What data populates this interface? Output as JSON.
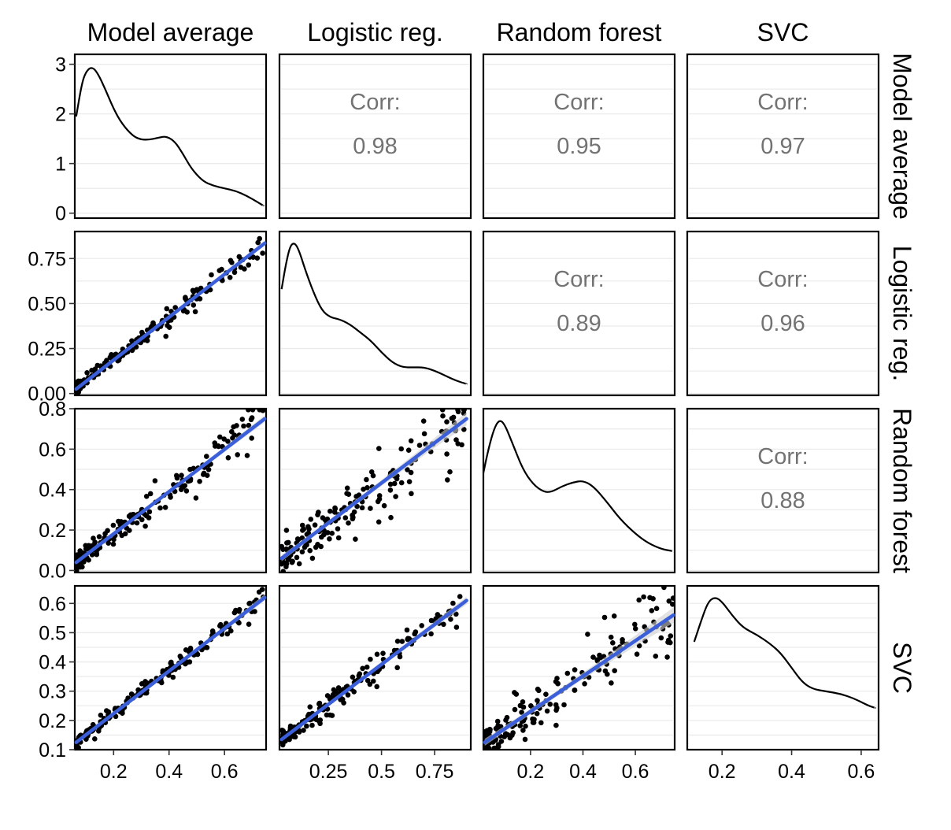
{
  "chart_data": {
    "type": "scatter-matrix",
    "variables": [
      "Model average",
      "Logistic reg.",
      "Random forest",
      "SVC"
    ],
    "x_ticks": [
      {
        "values": [
          0.2,
          0.4,
          0.6
        ],
        "labels": [
          "0.2",
          "0.4",
          "0.6"
        ]
      },
      {
        "values": [
          0.25,
          0.5,
          0.75
        ],
        "labels": [
          "0.25",
          "0.5",
          "0.75"
        ]
      },
      {
        "values": [
          0.2,
          0.4,
          0.6
        ],
        "labels": [
          "0.2",
          "0.4",
          "0.6"
        ]
      },
      {
        "values": [
          0.2,
          0.4,
          0.6
        ],
        "labels": [
          "0.2",
          "0.4",
          "0.6"
        ]
      }
    ],
    "x_ranges": [
      [
        0.06,
        0.75
      ],
      [
        0.02,
        0.92
      ],
      [
        0.02,
        0.75
      ],
      [
        0.1,
        0.65
      ]
    ],
    "y_ticks": [
      {
        "values": [
          0,
          1,
          2,
          3
        ],
        "labels": [
          "0",
          "1",
          "2",
          "3"
        ]
      },
      {
        "values": [
          0,
          0.25,
          0.5,
          0.75
        ],
        "labels": [
          "0.00",
          "0.25",
          "0.50",
          "0.75"
        ]
      },
      {
        "values": [
          0,
          0.2,
          0.4,
          0.6,
          0.8
        ],
        "labels": [
          "0.0",
          "0.2",
          "0.4",
          "0.6",
          "0.8"
        ]
      },
      {
        "values": [
          0.1,
          0.2,
          0.3,
          0.4,
          0.5,
          0.6
        ],
        "labels": [
          "0.1",
          "0.2",
          "0.3",
          "0.4",
          "0.5",
          "0.6"
        ]
      }
    ],
    "y_ranges": [
      [
        -0.1,
        3.2
      ],
      [
        -0.01,
        0.9
      ],
      [
        -0.01,
        0.8
      ],
      [
        0.1,
        0.66
      ]
    ],
    "density_y_range": [
      -0.1,
      3.2
    ],
    "correlations": [
      {
        "row": 0,
        "col": 1,
        "label": "Corr:",
        "value": "0.98"
      },
      {
        "row": 0,
        "col": 2,
        "label": "Corr:",
        "value": "0.95"
      },
      {
        "row": 0,
        "col": 3,
        "label": "Corr:",
        "value": "0.97"
      },
      {
        "row": 1,
        "col": 2,
        "label": "Corr:",
        "value": "0.89"
      },
      {
        "row": 1,
        "col": 3,
        "label": "Corr:",
        "value": "0.96"
      },
      {
        "row": 2,
        "col": 3,
        "label": "Corr:",
        "value": "0.88"
      }
    ],
    "densities": [
      {
        "var": 0,
        "points": [
          [
            0.065,
            1.95
          ],
          [
            0.085,
            2.6
          ],
          [
            0.1,
            2.85
          ],
          [
            0.12,
            2.95
          ],
          [
            0.14,
            2.85
          ],
          [
            0.17,
            2.5
          ],
          [
            0.2,
            2.1
          ],
          [
            0.23,
            1.8
          ],
          [
            0.27,
            1.55
          ],
          [
            0.3,
            1.48
          ],
          [
            0.33,
            1.48
          ],
          [
            0.36,
            1.52
          ],
          [
            0.39,
            1.55
          ],
          [
            0.42,
            1.45
          ],
          [
            0.45,
            1.2
          ],
          [
            0.48,
            0.9
          ],
          [
            0.52,
            0.65
          ],
          [
            0.56,
            0.55
          ],
          [
            0.6,
            0.5
          ],
          [
            0.64,
            0.45
          ],
          [
            0.68,
            0.35
          ],
          [
            0.72,
            0.22
          ],
          [
            0.74,
            0.15
          ]
        ]
      },
      {
        "var": 1,
        "points": [
          [
            0.03,
            0.6
          ],
          [
            0.05,
            0.75
          ],
          [
            0.07,
            0.86
          ],
          [
            0.09,
            0.88
          ],
          [
            0.11,
            0.84
          ],
          [
            0.14,
            0.72
          ],
          [
            0.18,
            0.58
          ],
          [
            0.22,
            0.47
          ],
          [
            0.26,
            0.43
          ],
          [
            0.3,
            0.42
          ],
          [
            0.35,
            0.39
          ],
          [
            0.4,
            0.34
          ],
          [
            0.45,
            0.29
          ],
          [
            0.5,
            0.22
          ],
          [
            0.55,
            0.16
          ],
          [
            0.6,
            0.13
          ],
          [
            0.65,
            0.13
          ],
          [
            0.7,
            0.13
          ],
          [
            0.75,
            0.11
          ],
          [
            0.8,
            0.08
          ],
          [
            0.85,
            0.05
          ],
          [
            0.9,
            0.03
          ]
        ]
      },
      {
        "var": 2,
        "points": [
          [
            0.02,
            0.49
          ],
          [
            0.04,
            0.62
          ],
          [
            0.06,
            0.72
          ],
          [
            0.08,
            0.77
          ],
          [
            0.1,
            0.75
          ],
          [
            0.13,
            0.65
          ],
          [
            0.17,
            0.51
          ],
          [
            0.21,
            0.43
          ],
          [
            0.25,
            0.39
          ],
          [
            0.28,
            0.39
          ],
          [
            0.32,
            0.42
          ],
          [
            0.36,
            0.44
          ],
          [
            0.4,
            0.45
          ],
          [
            0.44,
            0.42
          ],
          [
            0.49,
            0.34
          ],
          [
            0.54,
            0.25
          ],
          [
            0.6,
            0.17
          ],
          [
            0.65,
            0.12
          ],
          [
            0.7,
            0.09
          ],
          [
            0.74,
            0.08
          ]
        ]
      },
      {
        "var": 3,
        "points": [
          [
            0.12,
            0.43
          ],
          [
            0.14,
            0.52
          ],
          [
            0.16,
            0.6
          ],
          [
            0.18,
            0.62
          ],
          [
            0.2,
            0.6
          ],
          [
            0.23,
            0.54
          ],
          [
            0.26,
            0.49
          ],
          [
            0.3,
            0.46
          ],
          [
            0.34,
            0.42
          ],
          [
            0.37,
            0.38
          ],
          [
            0.4,
            0.32
          ],
          [
            0.43,
            0.26
          ],
          [
            0.46,
            0.23
          ],
          [
            0.5,
            0.22
          ],
          [
            0.54,
            0.21
          ],
          [
            0.58,
            0.19
          ],
          [
            0.62,
            0.16
          ],
          [
            0.64,
            0.15
          ]
        ]
      }
    ],
    "scatter_panels": [
      {
        "row": 1,
        "col": 0,
        "fit": [
          [
            0.065,
            0.025
          ],
          [
            0.745,
            0.835
          ]
        ],
        "band_halfwidth": 0.006,
        "n": 170,
        "slope": 1.19,
        "intercept": -0.052,
        "noise": 0.025,
        "seed": 11
      },
      {
        "row": 2,
        "col": 0,
        "fit": [
          [
            0.065,
            0.04
          ],
          [
            0.745,
            0.75
          ]
        ],
        "band_halfwidth": 0.008,
        "n": 170,
        "slope": 1.04,
        "intercept": -0.028,
        "noise": 0.04,
        "seed": 23
      },
      {
        "row": 2,
        "col": 1,
        "fit": [
          [
            0.03,
            0.06
          ],
          [
            0.9,
            0.75
          ]
        ],
        "band_halfwidth": 0.015,
        "n": 170,
        "slope": 0.79,
        "intercept": 0.035,
        "noise": 0.07,
        "seed": 37
      },
      {
        "row": 3,
        "col": 0,
        "fit": [
          [
            0.065,
            0.125
          ],
          [
            0.745,
            0.62
          ]
        ],
        "band_halfwidth": 0.005,
        "n": 170,
        "slope": 0.73,
        "intercept": 0.078,
        "noise": 0.015,
        "seed": 41
      },
      {
        "row": 3,
        "col": 1,
        "fit": [
          [
            0.03,
            0.135
          ],
          [
            0.9,
            0.61
          ]
        ],
        "band_halfwidth": 0.006,
        "n": 170,
        "slope": 0.545,
        "intercept": 0.119,
        "noise": 0.022,
        "seed": 53
      },
      {
        "row": 3,
        "col": 2,
        "fit": [
          [
            0.025,
            0.125
          ],
          [
            0.745,
            0.56
          ]
        ],
        "band_halfwidth": 0.012,
        "n": 170,
        "slope": 0.605,
        "intercept": 0.11,
        "noise": 0.05,
        "seed": 67
      }
    ]
  }
}
